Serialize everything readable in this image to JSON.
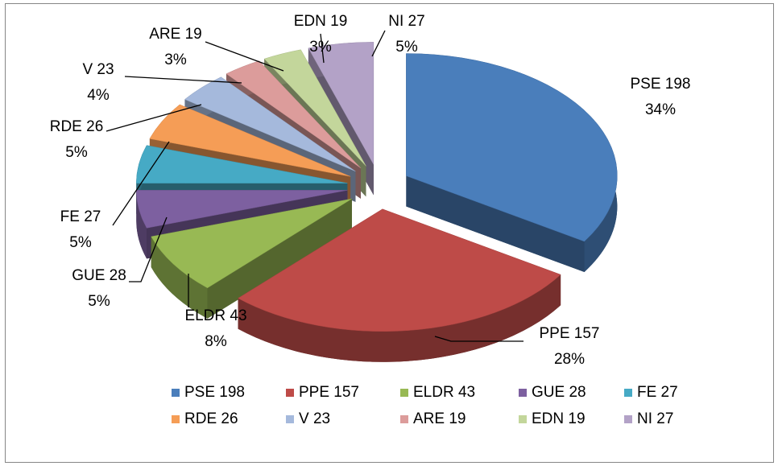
{
  "chart_data": {
    "type": "pie",
    "categories": [
      "PSE 198",
      "PPE 157",
      "ELDR 43",
      "GUE 28",
      "FE 27",
      "RDE 26",
      "V 23",
      "ARE 19",
      "EDN 19",
      "NI 27"
    ],
    "values": [
      34,
      28,
      8,
      5,
      5,
      5,
      4,
      3,
      3,
      5
    ],
    "value_labels": [
      "34%",
      "28%",
      "8%",
      "5%",
      "5%",
      "5%",
      "4%",
      "3%",
      "3%",
      "5%"
    ],
    "colors": [
      "#4a7ebb",
      "#be4b48",
      "#98b954",
      "#7d60a0",
      "#46aac5",
      "#f59d56",
      "#a5b9dc",
      "#dc9c9b",
      "#c3d69b",
      "#b3a2c7"
    ],
    "legend": "bottom"
  }
}
